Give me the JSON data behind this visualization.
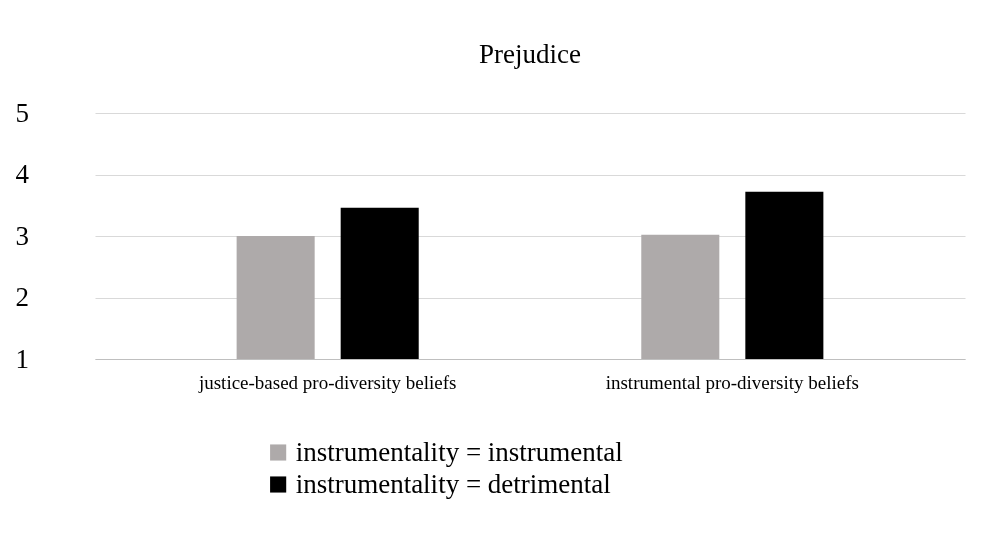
{
  "chart_data": {
    "type": "bar",
    "title": "Prejudice",
    "categories": [
      "justice-based pro-diversity beliefs",
      "instrumental pro-diversity beliefs"
    ],
    "series": [
      {
        "name": "instrumentality = instrumental",
        "color": "#aeaaaa",
        "values": [
          3.0,
          3.02
        ]
      },
      {
        "name": "instrumentality = detrimental",
        "color": "#000000",
        "values": [
          3.46,
          3.72
        ]
      }
    ],
    "ylim": [
      1,
      5
    ],
    "yticks": [
      1,
      2,
      3,
      4,
      5
    ],
    "grid": "y",
    "legend": "bottom"
  }
}
